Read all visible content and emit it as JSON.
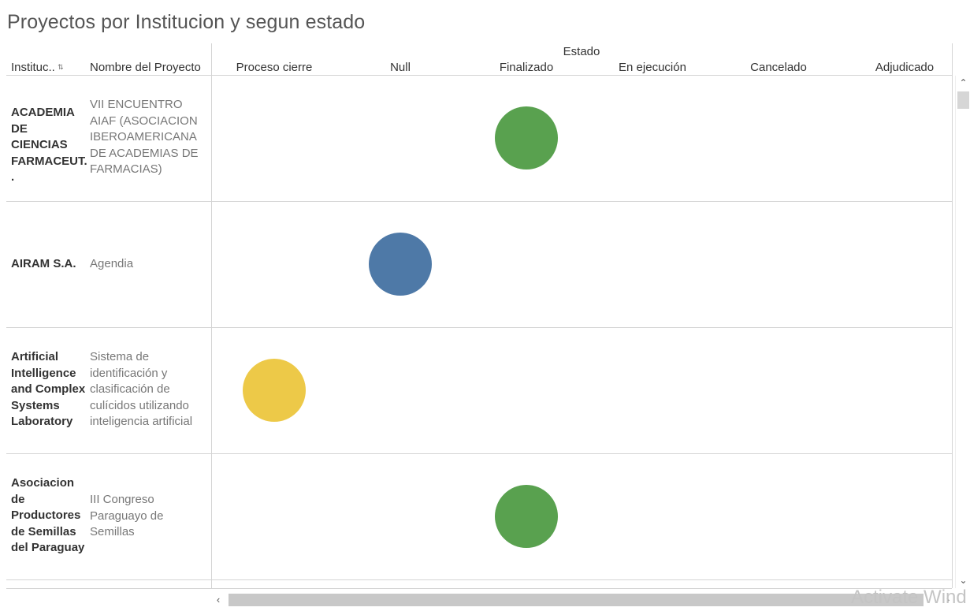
{
  "title": "Proyectos por Institucion y segun estado",
  "headers": {
    "institucion": "Instituc..",
    "proyecto": "Nombre del Proyecto",
    "estado": "Estado"
  },
  "sort_icon": "sort-az-icon",
  "watermark": "Activate Wind",
  "chart_data": {
    "type": "scatter",
    "title": "Proyectos por Institucion y segun estado",
    "column_header": "Estado",
    "categories": [
      "Proceso cierre",
      "Null",
      "Finalizado",
      "En ejecución",
      "Cancelado",
      "Adjudicado"
    ],
    "colors": {
      "Finalizado": "#59a14f",
      "Null": "#4e79a7",
      "Proceso cierre": "#edc948"
    },
    "rows": [
      {
        "institucion": "ACADEMIA DE CIENCIAS FARMACEUT. .",
        "proyecto": "VII ENCUENTRO AIAF (ASOCIACION IBEROAMERICANA DE ACADEMIAS DE FARMACIAS)",
        "estado": "Finalizado"
      },
      {
        "institucion": "AIRAM S.A.",
        "proyecto": "Agendia",
        "estado": "Null"
      },
      {
        "institucion": "Artificial Intelligence and Complex Systems Laboratory",
        "proyecto": "Sistema de identificación y clasificación de culícidos utilizando inteligencia artificial",
        "estado": "Proceso cierre"
      },
      {
        "institucion": "Asociacion de Productores de Semillas del Paraguay",
        "proyecto": "III Congreso Paraguayo de Semillas",
        "estado": "Finalizado"
      }
    ],
    "legend": "none",
    "grid": "row separators only"
  }
}
